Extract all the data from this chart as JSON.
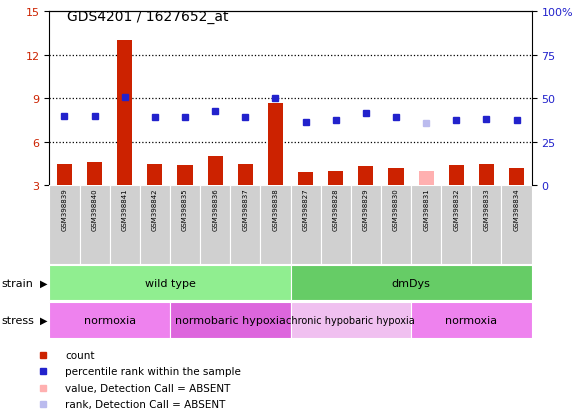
{
  "title": "GDS4201 / 1627652_at",
  "samples": [
    "GSM398839",
    "GSM398840",
    "GSM398841",
    "GSM398842",
    "GSM398835",
    "GSM398836",
    "GSM398837",
    "GSM398838",
    "GSM398827",
    "GSM398828",
    "GSM398829",
    "GSM398830",
    "GSM398831",
    "GSM398832",
    "GSM398833",
    "GSM398834"
  ],
  "bar_values": [
    4.5,
    4.6,
    13.0,
    4.5,
    4.4,
    5.0,
    4.5,
    8.7,
    3.9,
    4.0,
    4.3,
    4.2,
    4.0,
    4.4,
    4.5,
    4.2
  ],
  "dot_values": [
    7.8,
    7.8,
    9.1,
    7.7,
    7.7,
    8.1,
    7.7,
    9.0,
    7.4,
    7.5,
    8.0,
    7.7,
    7.3,
    7.5,
    7.6,
    7.5
  ],
  "bar_absent": [
    false,
    false,
    false,
    false,
    false,
    false,
    false,
    false,
    false,
    false,
    false,
    false,
    true,
    false,
    false,
    false
  ],
  "dot_absent": [
    false,
    false,
    false,
    false,
    false,
    false,
    false,
    false,
    false,
    false,
    false,
    false,
    true,
    false,
    false,
    false
  ],
  "strain_groups": [
    {
      "label": "wild type",
      "start": 0,
      "end": 8,
      "color": "#90EE90"
    },
    {
      "label": "dmDys",
      "start": 8,
      "end": 16,
      "color": "#66CC66"
    }
  ],
  "stress_groups": [
    {
      "label": "normoxia",
      "start": 0,
      "end": 4,
      "color": "#EE82EE"
    },
    {
      "label": "normobaric hypoxia",
      "start": 4,
      "end": 8,
      "color": "#DD66DD"
    },
    {
      "label": "chronic hypobaric hypoxia",
      "start": 8,
      "end": 12,
      "color": "#F0C0F0"
    },
    {
      "label": "normoxia",
      "start": 12,
      "end": 16,
      "color": "#EE82EE"
    }
  ],
  "ylim_left": [
    3,
    15
  ],
  "ylim_right": [
    0,
    100
  ],
  "yticks_left": [
    3,
    6,
    9,
    12,
    15
  ],
  "yticks_right": [
    0,
    25,
    50,
    75,
    100
  ],
  "bar_color": "#CC2200",
  "dot_color": "#2222CC",
  "bar_absent_color": "#FFB0B0",
  "dot_absent_color": "#BBBBEE",
  "label_color_left": "#CC2200",
  "label_color_right": "#2222CC",
  "sample_box_color": "#D0D0D0",
  "legend_items": [
    {
      "color": "#CC2200",
      "label": "count"
    },
    {
      "color": "#2222CC",
      "label": "percentile rank within the sample"
    },
    {
      "color": "#FFB0B0",
      "label": "value, Detection Call = ABSENT"
    },
    {
      "color": "#BBBBEE",
      "label": "rank, Detection Call = ABSENT"
    }
  ]
}
